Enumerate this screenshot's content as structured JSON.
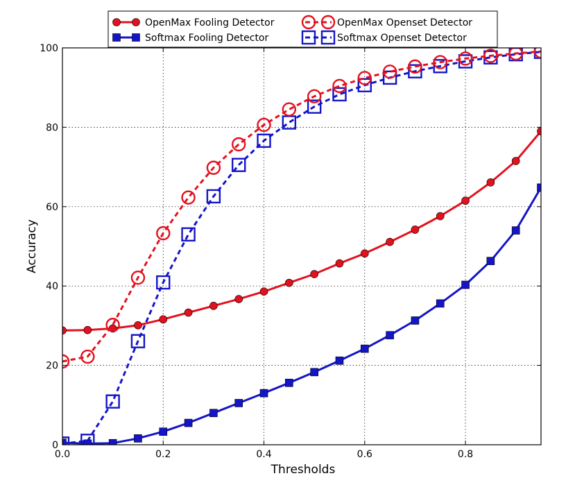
{
  "chart_data": {
    "type": "line",
    "xlabel": "Thresholds",
    "ylabel": "Accuracy",
    "xlim": [
      0.0,
      0.95
    ],
    "ylim": [
      0,
      100
    ],
    "x_ticks": [
      "0.0",
      "0.2",
      "0.4",
      "0.6",
      "0.8"
    ],
    "y_ticks": [
      "0",
      "20",
      "40",
      "60",
      "80",
      "100"
    ],
    "grid": true,
    "legend_position": "top-center",
    "x": [
      0.0,
      0.05,
      0.1,
      0.15,
      0.2,
      0.25,
      0.3,
      0.35,
      0.4,
      0.45,
      0.5,
      0.55,
      0.6,
      0.65,
      0.7,
      0.75,
      0.8,
      0.85,
      0.9,
      0.95
    ],
    "series": [
      {
        "name": "OpenMax Fooling Detector",
        "color": "#e3111e",
        "line_style": "solid",
        "marker": "filled-circle",
        "values": [
          28.8,
          28.9,
          29.3,
          30.1,
          31.6,
          33.3,
          35.0,
          36.7,
          38.6,
          40.8,
          43.0,
          45.7,
          48.2,
          51.1,
          54.2,
          57.6,
          61.5,
          66.1,
          71.5,
          79.0
        ]
      },
      {
        "name": "OpenMax Openset Detector",
        "color": "#e3111e",
        "line_style": "dashed",
        "marker": "open-circle",
        "values": [
          21.0,
          22.2,
          30.2,
          42.1,
          53.3,
          62.3,
          69.8,
          75.7,
          80.6,
          84.5,
          87.8,
          90.4,
          92.4,
          94.0,
          95.3,
          96.4,
          97.3,
          98.0,
          98.6,
          99.1
        ]
      },
      {
        "name": "Softmax Fooling Detector",
        "color": "#1414c8",
        "line_style": "solid",
        "marker": "filled-square",
        "values": [
          0.5,
          0.3,
          0.4,
          1.6,
          3.3,
          5.5,
          8.0,
          10.5,
          13.0,
          15.6,
          18.3,
          21.2,
          24.2,
          27.6,
          31.3,
          35.6,
          40.3,
          46.3,
          54.0,
          64.8
        ]
      },
      {
        "name": "Softmax Openset Detector",
        "color": "#1414c8",
        "line_style": "dashed",
        "marker": "open-square",
        "values": [
          0.3,
          1.0,
          10.9,
          26.1,
          40.9,
          53.0,
          62.6,
          70.5,
          76.6,
          81.2,
          85.2,
          88.3,
          90.6,
          92.5,
          94.1,
          95.4,
          96.6,
          97.6,
          98.4,
          99.0
        ]
      }
    ]
  }
}
